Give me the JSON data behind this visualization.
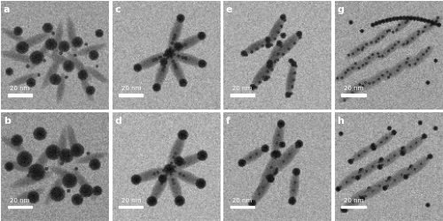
{
  "panels": [
    {
      "label": "a",
      "row": 0,
      "col": 0,
      "bg": 155
    },
    {
      "label": "b",
      "row": 1,
      "col": 0,
      "bg": 148
    },
    {
      "label": "c",
      "row": 0,
      "col": 1,
      "bg": 168
    },
    {
      "label": "d",
      "row": 1,
      "col": 1,
      "bg": 175
    },
    {
      "label": "e",
      "row": 0,
      "col": 2,
      "bg": 170
    },
    {
      "label": "f",
      "row": 1,
      "col": 2,
      "bg": 165
    },
    {
      "label": "g",
      "row": 0,
      "col": 3,
      "bg": 158
    },
    {
      "label": "h",
      "row": 1,
      "col": 3,
      "bg": 162
    }
  ],
  "figsize": [
    5.0,
    2.5
  ],
  "dpi": 100,
  "label_fontsize": 8,
  "scale_fontsize": 5,
  "scale_bar_text": "20 nm",
  "noise_std": 12,
  "rod_color": 85,
  "dot_color": 30,
  "dot_small_color": 55,
  "wspace": 0.02,
  "hspace": 0.02
}
